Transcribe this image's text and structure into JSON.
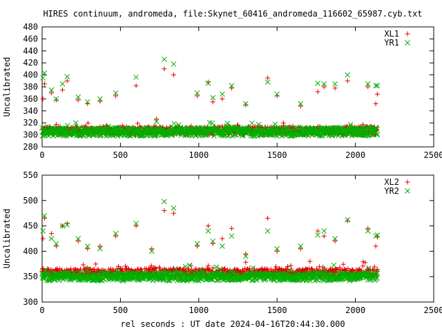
{
  "title": "HIRES continuum, andromeda, file:Skynet_60416_andromeda_116602_65987.cyb.txt",
  "xlabel": "rel seconds : UT date 2024-04-16T20:44:30.000",
  "colors": {
    "red": "#e00000",
    "green": "#00b000",
    "axis": "#000000"
  },
  "chart_data": [
    {
      "type": "scatter",
      "ylabel": "Uncalibrated",
      "xlim": [
        0,
        2500
      ],
      "ylim": [
        280,
        480
      ],
      "xticks": [
        0,
        500,
        1000,
        1500,
        2000,
        2500
      ],
      "yticks": [
        280,
        300,
        320,
        340,
        360,
        380,
        400,
        420,
        440,
        460,
        480
      ],
      "legend_position": "top-right",
      "series": [
        {
          "name": "XL1",
          "marker": "plus",
          "color": "#e00000",
          "baseline": {
            "x_start": 0,
            "x_end": 2140,
            "level": 307,
            "spread": 7
          },
          "x": [
            5,
            15,
            60,
            90,
            130,
            160,
            230,
            290,
            370,
            470,
            600,
            780,
            840,
            990,
            1060,
            1090,
            1150,
            1210,
            1300,
            1440,
            1500,
            1650,
            1760,
            1800,
            1870,
            1950,
            2080,
            2130,
            2140
          ],
          "y": [
            360,
            385,
            370,
            358,
            375,
            390,
            358,
            352,
            356,
            365,
            382,
            410,
            400,
            365,
            388,
            355,
            360,
            378,
            350,
            395,
            365,
            348,
            372,
            380,
            378,
            390,
            380,
            352,
            368
          ]
        },
        {
          "name": "YR1",
          "marker": "x",
          "color": "#00b000",
          "baseline": {
            "x_start": 0,
            "x_end": 2140,
            "level": 305,
            "spread": 7
          },
          "x": [
            5,
            15,
            60,
            90,
            130,
            160,
            230,
            290,
            370,
            470,
            600,
            780,
            840,
            990,
            1060,
            1090,
            1150,
            1210,
            1300,
            1440,
            1500,
            1650,
            1760,
            1800,
            1870,
            1950,
            2080,
            2130,
            2140
          ],
          "y": [
            395,
            403,
            375,
            360,
            385,
            397,
            363,
            355,
            360,
            370,
            396,
            426,
            418,
            370,
            386,
            362,
            368,
            382,
            352,
            388,
            368,
            352,
            386,
            385,
            385,
            400,
            385,
            382,
            382
          ]
        }
      ]
    },
    {
      "type": "scatter",
      "ylabel": "Uncalibrated",
      "xlim": [
        0,
        2500
      ],
      "ylim": [
        300,
        550
      ],
      "xticks": [
        0,
        500,
        1000,
        1500,
        2000,
        2500
      ],
      "yticks": [
        300,
        350,
        400,
        450,
        500,
        550
      ],
      "legend_position": "top-right",
      "series": [
        {
          "name": "XL2",
          "marker": "plus",
          "color": "#e00000",
          "baseline": {
            "x_start": 0,
            "x_end": 2140,
            "level": 358,
            "spread": 8
          },
          "x": [
            5,
            15,
            60,
            90,
            130,
            160,
            230,
            290,
            370,
            470,
            600,
            700,
            780,
            840,
            990,
            1060,
            1090,
            1150,
            1210,
            1300,
            1440,
            1500,
            1650,
            1760,
            1800,
            1870,
            1950,
            2080,
            2130,
            2140
          ],
          "y": [
            425,
            465,
            435,
            410,
            450,
            455,
            420,
            405,
            410,
            430,
            450,
            405,
            480,
            475,
            410,
            450,
            415,
            425,
            445,
            395,
            465,
            400,
            405,
            440,
            430,
            420,
            460,
            445,
            410,
            428
          ]
        },
        {
          "name": "YR2",
          "marker": "x",
          "color": "#00b000",
          "baseline": {
            "x_start": 0,
            "x_end": 2140,
            "level": 350,
            "spread": 8
          },
          "x": [
            5,
            15,
            60,
            90,
            130,
            160,
            230,
            290,
            370,
            470,
            600,
            700,
            780,
            840,
            990,
            1060,
            1090,
            1150,
            1210,
            1300,
            1440,
            1500,
            1650,
            1760,
            1800,
            1870,
            1950,
            2080,
            2130,
            2140
          ],
          "y": [
            440,
            470,
            425,
            415,
            450,
            452,
            425,
            410,
            405,
            435,
            455,
            400,
            498,
            485,
            415,
            440,
            420,
            410,
            430,
            390,
            440,
            405,
            410,
            432,
            440,
            425,
            462,
            440,
            430,
            432
          ]
        }
      ]
    }
  ]
}
